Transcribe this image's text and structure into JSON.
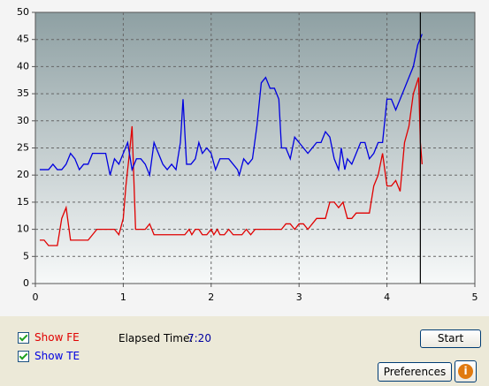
{
  "chart_data": {
    "type": "line",
    "xlim": [
      0,
      5
    ],
    "xticks": [
      0,
      1,
      2,
      3,
      4,
      5
    ],
    "ylim": [
      0,
      50
    ],
    "yticks": [
      0,
      5,
      10,
      15,
      20,
      25,
      30,
      35,
      40,
      45,
      50
    ],
    "grid": true,
    "cursor_x": 4.38,
    "series": [
      {
        "name": "Show FE",
        "color": "#e00000",
        "x": [
          0.05,
          0.1,
          0.15,
          0.2,
          0.25,
          0.3,
          0.35,
          0.4,
          0.45,
          0.5,
          0.55,
          0.6,
          0.65,
          0.7,
          0.75,
          0.8,
          0.85,
          0.9,
          0.95,
          1.0,
          1.03,
          1.07,
          1.1,
          1.14,
          1.2,
          1.25,
          1.3,
          1.35,
          1.4,
          1.5,
          1.6,
          1.7,
          1.75,
          1.78,
          1.82,
          1.86,
          1.9,
          1.95,
          2.0,
          2.03,
          2.07,
          2.1,
          2.15,
          2.2,
          2.25,
          2.3,
          2.35,
          2.4,
          2.45,
          2.5,
          2.6,
          2.7,
          2.8,
          2.85,
          2.9,
          2.95,
          3.0,
          3.05,
          3.1,
          3.15,
          3.2,
          3.3,
          3.35,
          3.4,
          3.45,
          3.5,
          3.55,
          3.6,
          3.65,
          3.8,
          3.85,
          3.9,
          3.95,
          4.0,
          4.05,
          4.1,
          4.15,
          4.2,
          4.25,
          4.3,
          4.36,
          4.38,
          4.4
        ],
        "values": [
          8,
          8,
          7,
          7,
          7,
          12,
          14,
          8,
          8,
          8,
          8,
          8,
          9,
          10,
          10,
          10,
          10,
          10,
          9,
          12,
          18,
          24,
          29,
          10,
          10,
          10,
          11,
          9,
          9,
          9,
          9,
          9,
          10,
          9,
          10,
          10,
          9,
          9,
          10,
          9,
          10,
          9,
          9,
          10,
          9,
          9,
          9,
          10,
          9,
          10,
          10,
          10,
          10,
          11,
          11,
          10,
          11,
          11,
          10,
          11,
          12,
          12,
          15,
          15,
          14,
          15,
          12,
          12,
          13,
          13,
          18,
          20,
          24,
          18,
          18,
          19,
          17,
          26,
          29,
          35,
          38,
          26,
          22
        ]
      },
      {
        "name": "Show TE",
        "color": "#0000e0",
        "x": [
          0.05,
          0.1,
          0.15,
          0.2,
          0.25,
          0.3,
          0.35,
          0.4,
          0.45,
          0.5,
          0.55,
          0.6,
          0.65,
          0.7,
          0.75,
          0.8,
          0.85,
          0.9,
          0.95,
          1.0,
          1.05,
          1.1,
          1.15,
          1.2,
          1.25,
          1.3,
          1.35,
          1.4,
          1.45,
          1.5,
          1.55,
          1.6,
          1.65,
          1.68,
          1.72,
          1.77,
          1.82,
          1.86,
          1.9,
          1.95,
          2.0,
          2.05,
          2.1,
          2.15,
          2.2,
          2.25,
          2.3,
          2.32,
          2.37,
          2.42,
          2.47,
          2.52,
          2.57,
          2.62,
          2.67,
          2.72,
          2.77,
          2.8,
          2.85,
          2.9,
          2.95,
          3.0,
          3.05,
          3.1,
          3.15,
          3.2,
          3.25,
          3.3,
          3.35,
          3.4,
          3.45,
          3.48,
          3.52,
          3.55,
          3.6,
          3.65,
          3.7,
          3.75,
          3.8,
          3.85,
          3.9,
          3.95,
          4.0,
          4.05,
          4.1,
          4.15,
          4.2,
          4.25,
          4.3,
          4.35,
          4.4
        ],
        "values": [
          21,
          21,
          21,
          22,
          21,
          21,
          22,
          24,
          23,
          21,
          22,
          22,
          24,
          24,
          24,
          24,
          20,
          23,
          22,
          24,
          26,
          21,
          23,
          23,
          22,
          20,
          26,
          24,
          22,
          21,
          22,
          21,
          26,
          34,
          22,
          22,
          23,
          26,
          24,
          25,
          24,
          21,
          23,
          23,
          23,
          22,
          21,
          20,
          23,
          22,
          23,
          29,
          37,
          38,
          36,
          36,
          34,
          25,
          25,
          23,
          27,
          26,
          25,
          24,
          25,
          26,
          26,
          28,
          27,
          23,
          21,
          25,
          21,
          23,
          22,
          24,
          26,
          26,
          23,
          24,
          26,
          26,
          34,
          34,
          32,
          34,
          36,
          38,
          40,
          44,
          46
        ]
      }
    ]
  },
  "controls": {
    "elapsed_label": "Elapsed Time:",
    "elapsed_value": "7:20",
    "start": "Start",
    "preferences": "Preferences",
    "info": "i"
  }
}
